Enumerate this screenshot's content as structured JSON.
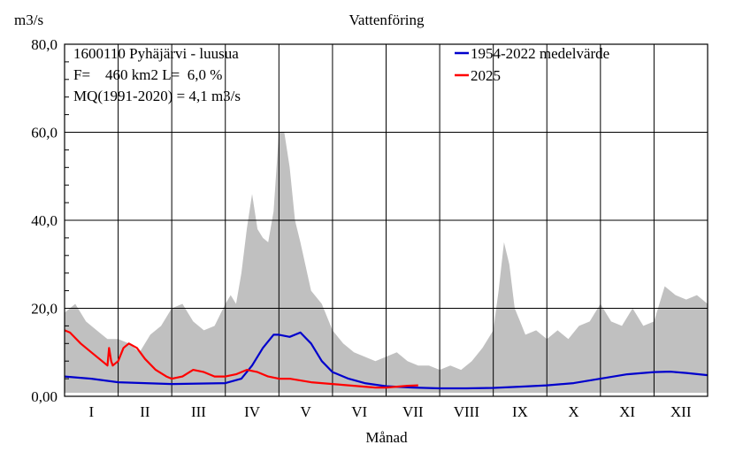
{
  "chart_data": {
    "type": "area",
    "title": "Vattenföring",
    "ylabel": "m3/s",
    "xlabel": "Månad",
    "ylim": [
      0,
      80
    ],
    "y_ticks": [
      {
        "value": 0,
        "label": "0,00"
      },
      {
        "value": 20,
        "label": "20,0"
      },
      {
        "value": 40,
        "label": "40,0"
      },
      {
        "value": 60,
        "label": "60,0"
      },
      {
        "value": 80,
        "label": "80,0"
      }
    ],
    "month_labels": [
      "I",
      "II",
      "III",
      "IV",
      "V",
      "VI",
      "VII",
      "VIII",
      "IX",
      "X",
      "XI",
      "XII"
    ],
    "grid": true,
    "station_info": [
      "1600110 Pyhäjärvi - luusua",
      "F=    460 km2 L=  6,0 %",
      "MQ(1991-2020) = 4,1 m3/s"
    ],
    "legend": {
      "placement": "top-right",
      "entries": [
        {
          "label": "1954-2022 medelvärde",
          "color": "#0000cc"
        },
        {
          "label": "2025",
          "color": "#ff0000"
        }
      ]
    },
    "range_band": {
      "color": "#c0c0c0",
      "x": [
        0,
        0.2,
        0.4,
        0.6,
        0.8,
        1.0,
        1.2,
        1.4,
        1.6,
        1.8,
        2.0,
        2.2,
        2.4,
        2.6,
        2.8,
        3.0,
        3.1,
        3.2,
        3.3,
        3.4,
        3.5,
        3.6,
        3.7,
        3.8,
        3.9,
        4.0,
        4.1,
        4.2,
        4.3,
        4.4,
        4.6,
        4.8,
        5.0,
        5.2,
        5.4,
        5.6,
        5.8,
        6.0,
        6.2,
        6.4,
        6.6,
        6.8,
        7.0,
        7.2,
        7.4,
        7.6,
        7.8,
        8.0,
        8.1,
        8.2,
        8.3,
        8.4,
        8.5,
        8.6,
        8.8,
        9.0,
        9.2,
        9.4,
        9.6,
        9.8,
        10.0,
        10.2,
        10.4,
        10.6,
        10.8,
        11.0,
        11.2,
        11.4,
        11.6,
        11.8,
        12.0
      ],
      "max": [
        19,
        21,
        17,
        15,
        13,
        13,
        12,
        10,
        14,
        16,
        20,
        21,
        17,
        15,
        16,
        21,
        23,
        21,
        28,
        38,
        46,
        38,
        36,
        35,
        42,
        60,
        60,
        52,
        40,
        35,
        24,
        21,
        15,
        12,
        10,
        9,
        8,
        9,
        10,
        8,
        7,
        7,
        6,
        7,
        6,
        8,
        11,
        15,
        24,
        35,
        30,
        20,
        17,
        14,
        15,
        13,
        15,
        13,
        16,
        17,
        21,
        17,
        16,
        20,
        16,
        17,
        25,
        23,
        22,
        23,
        21
      ],
      "min": [
        0.8,
        0.8,
        0.8,
        0.8,
        0.8,
        0.8,
        0.8,
        0.8,
        0.8,
        0.8,
        0.8,
        0.8,
        0.8,
        0.8,
        0.8,
        0.8,
        0.8,
        0.8,
        0.8,
        0.8,
        0.8,
        0.8,
        0.8,
        0.8,
        0.8,
        0.8,
        0.8,
        0.8,
        0.8,
        0.8,
        0.8,
        0.8,
        0.8,
        0.8,
        0.8,
        0.8,
        0.8,
        0.8,
        0.8,
        0.8,
        0.8,
        0.8,
        0.8,
        0.8,
        0.8,
        0.8,
        0.8,
        0.8,
        0.8,
        0.8,
        0.8,
        0.8,
        0.8,
        0.8,
        0.8,
        0.8,
        0.8,
        0.8,
        0.8,
        0.8,
        0.8,
        0.8,
        0.8,
        0.8,
        0.8,
        0.8,
        0.8,
        0.8,
        0.8,
        0.8,
        0.8
      ]
    },
    "series": [
      {
        "name": "1954-2022 medelvärde",
        "color": "#0000cc",
        "x": [
          0,
          0.5,
          1.0,
          1.5,
          2.0,
          2.5,
          3.0,
          3.3,
          3.5,
          3.7,
          3.9,
          4.0,
          4.2,
          4.4,
          4.6,
          4.8,
          5.0,
          5.3,
          5.6,
          6.0,
          6.5,
          7.0,
          7.5,
          8.0,
          8.5,
          9.0,
          9.5,
          10.0,
          10.5,
          11.0,
          11.3,
          11.6,
          12.0
        ],
        "y": [
          4.5,
          4.0,
          3.2,
          3.0,
          2.8,
          2.9,
          3.0,
          4.0,
          7.0,
          11.0,
          14.0,
          14.0,
          13.5,
          14.5,
          12.0,
          8.0,
          5.5,
          4.0,
          3.0,
          2.3,
          2.0,
          1.8,
          1.8,
          1.9,
          2.2,
          2.5,
          3.0,
          4.0,
          5.0,
          5.5,
          5.6,
          5.3,
          4.8
        ]
      },
      {
        "name": "2025",
        "color": "#ff0000",
        "x": [
          0,
          0.1,
          0.3,
          0.5,
          0.7,
          0.8,
          0.83,
          0.87,
          0.9,
          1.0,
          1.1,
          1.2,
          1.35,
          1.5,
          1.7,
          1.9,
          2.0,
          2.2,
          2.4,
          2.6,
          2.8,
          3.0,
          3.2,
          3.4,
          3.6,
          3.8,
          4.0,
          4.2,
          4.4,
          4.6,
          4.8,
          5.0,
          5.2,
          5.4,
          5.6,
          5.8,
          6.0,
          6.2,
          6.4,
          6.6
        ],
        "y": [
          15.0,
          14.5,
          12.0,
          10.0,
          8.0,
          7.0,
          11.0,
          8.0,
          7.0,
          8.0,
          11.0,
          12.0,
          11.0,
          8.5,
          6.0,
          4.5,
          4.0,
          4.5,
          6.0,
          5.5,
          4.5,
          4.5,
          5.0,
          6.0,
          5.5,
          4.5,
          4.0,
          4.0,
          3.6,
          3.2,
          3.0,
          2.8,
          2.6,
          2.4,
          2.2,
          2.0,
          2.0,
          2.2,
          2.4,
          2.5
        ]
      }
    ]
  }
}
